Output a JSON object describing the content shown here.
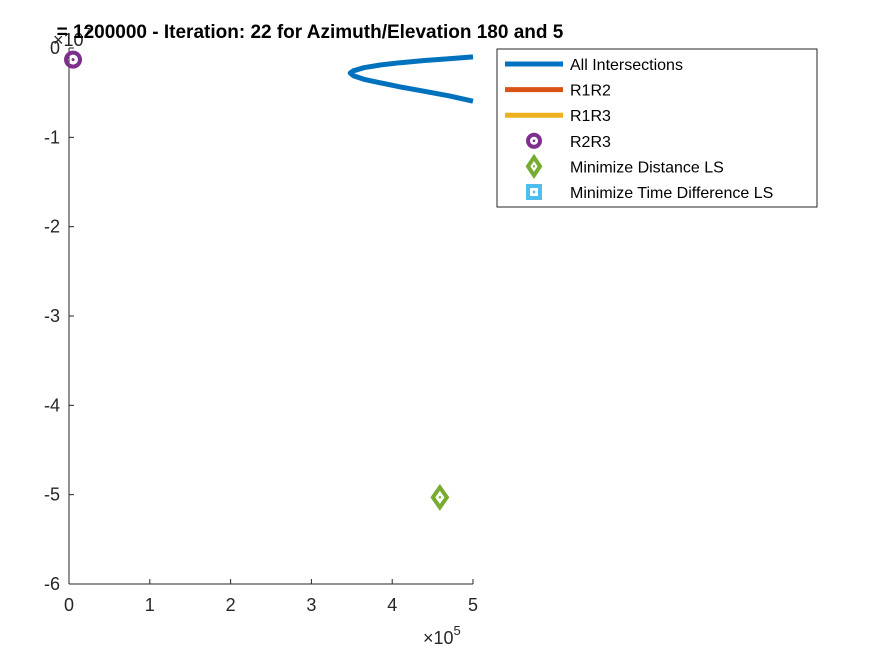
{
  "chart_data": {
    "type": "line",
    "title": "= 1200000 - Iteration: 22 for Azimuth/Elevation 180 and 5",
    "xlabel": "",
    "ylabel": "",
    "xlim": [
      0,
      500000
    ],
    "ylim": [
      -60000000,
      0
    ],
    "x_ticks": [
      0,
      100000,
      200000,
      300000,
      400000,
      500000
    ],
    "x_tick_labels": [
      "0",
      "1",
      "2",
      "3",
      "4",
      "5"
    ],
    "y_ticks": [
      0,
      -10000000,
      -20000000,
      -30000000,
      -40000000,
      -50000000,
      -60000000
    ],
    "y_tick_labels": [
      "0",
      "-1",
      "-2",
      "-3",
      "-4",
      "-5",
      "-6"
    ],
    "x_exponent_label": "×10",
    "x_exponent": "5",
    "y_exponent_label": "×10",
    "y_exponent": "7",
    "grid": false,
    "legend_position": "top-right-outside",
    "series": [
      {
        "name": "All Intersections",
        "kind": "line",
        "color": "#0072BD",
        "x": [
          500000,
          470000,
          440000,
          410000,
          385000,
          365000,
          352000,
          348000,
          352000,
          365000,
          385000,
          410000,
          440000,
          470000,
          500000
        ],
        "y": [
          -1000000,
          -1200000,
          -1400000,
          -1650000,
          -1900000,
          -2200000,
          -2550000,
          -2800000,
          -3100000,
          -3500000,
          -3900000,
          -4350000,
          -4850000,
          -5350000,
          -5950000
        ]
      },
      {
        "name": "R1R2",
        "kind": "line",
        "color": "#D95319",
        "x": [],
        "y": []
      },
      {
        "name": "R1R3",
        "kind": "line",
        "color": "#EDB120",
        "x": [],
        "y": []
      },
      {
        "name": "R2R3",
        "kind": "marker-circle",
        "color": "#7E2F8E",
        "x": [
          5000
        ],
        "y": [
          -1300000
        ]
      },
      {
        "name": "Minimize Distance LS",
        "kind": "marker-diamond",
        "color": "#77AC30",
        "x": [
          459000
        ],
        "y": [
          -50300000
        ]
      },
      {
        "name": "Minimize Time Difference LS",
        "kind": "marker-square",
        "color": "#4DBEEE",
        "x": [],
        "y": []
      }
    ]
  }
}
